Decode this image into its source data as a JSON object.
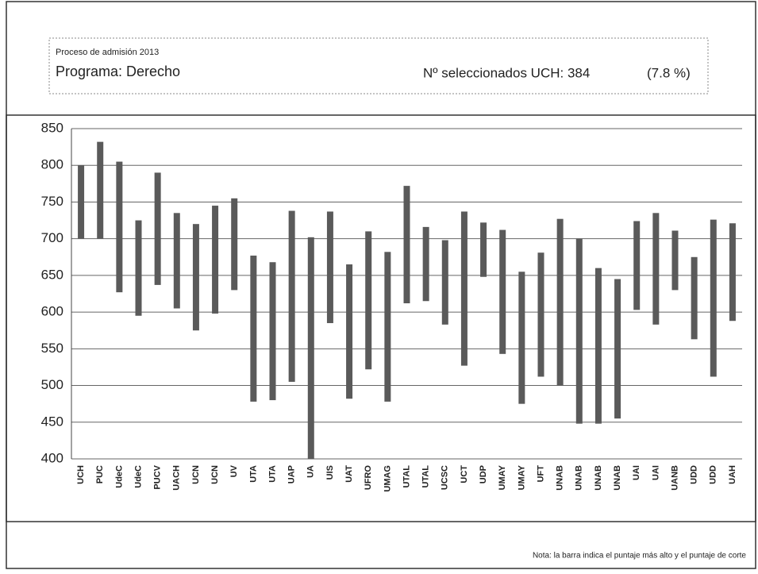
{
  "header": {
    "process": "Proceso de admisión 2013",
    "program": "Programa: Derecho",
    "selected": "Nº seleccionados UCH: 384",
    "percent": "(7.8 %)"
  },
  "chart_data": {
    "type": "range_bar",
    "color": "#5a5a5a",
    "categories": [
      "UCH",
      "PUC",
      "UdeC",
      "UdeC",
      "PUCV",
      "UACH",
      "UCN",
      "UCN",
      "UV",
      "UTA",
      "UTA",
      "UAP",
      "UA",
      "UIS",
      "UAT",
      "UFRO",
      "UMAG",
      "UTAL",
      "UTAL",
      "UCSC",
      "UCT",
      "UDP",
      "UMAY",
      "UMAY",
      "UFT",
      "UNAB",
      "UNAB",
      "UNAB",
      "UNAB",
      "UAI",
      "UAI",
      "UANB",
      "UDD",
      "UDD",
      "UAH"
    ],
    "high": [
      800,
      832,
      805,
      725,
      790,
      735,
      720,
      745,
      755,
      677,
      668,
      738,
      702,
      737,
      665,
      710,
      682,
      772,
      716,
      698,
      737,
      722,
      712,
      655,
      681,
      727,
      700,
      660,
      645,
      724,
      735,
      711,
      675,
      726,
      721
    ],
    "low": [
      700,
      700,
      627,
      595,
      637,
      605,
      575,
      598,
      630,
      478,
      480,
      505,
      400,
      585,
      482,
      522,
      478,
      612,
      615,
      583,
      527,
      648,
      543,
      475,
      512,
      500,
      448,
      448,
      455,
      603,
      583,
      630,
      563,
      512,
      588
    ],
    "ylim": [
      400,
      850
    ],
    "yticks": [
      400,
      450,
      500,
      550,
      600,
      650,
      700,
      750,
      800,
      850
    ],
    "grid": true,
    "note": "Nota: la barra indica el puntaje más alto y el puntaje de corte"
  }
}
